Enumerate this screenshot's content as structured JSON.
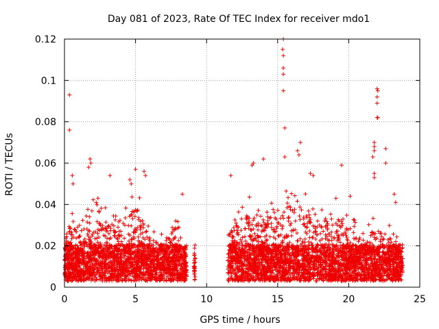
{
  "chart_data": {
    "type": "scatter",
    "title": "Day 081 of 2023, Rate Of TEC Index for receiver mdo1",
    "xlabel": "GPS time / hours",
    "ylabel": "ROTI / TECUs",
    "xlim": [
      0,
      25
    ],
    "ylim": [
      0,
      0.12
    ],
    "x_ticks": [
      "0",
      "5",
      "10",
      "15",
      "20",
      "25"
    ],
    "y_ticks": [
      "0",
      "0.02",
      "0.04",
      "0.06",
      "0.08",
      "0.1",
      "0.12"
    ],
    "grid": true,
    "marker": "plus",
    "color": "#ee0000",
    "density_profile": {
      "hours_with_data": [
        [
          0.0,
          8.6
        ],
        [
          9.1,
          9.2
        ],
        [
          11.5,
          23.8
        ]
      ],
      "baseline_range": [
        0.003,
        0.025
      ],
      "envelope": [
        {
          "x": 0.0,
          "y": 0.025
        },
        {
          "x": 0.5,
          "y": 0.04
        },
        {
          "x": 1.0,
          "y": 0.03
        },
        {
          "x": 2.0,
          "y": 0.045
        },
        {
          "x": 3.0,
          "y": 0.04
        },
        {
          "x": 4.0,
          "y": 0.035
        },
        {
          "x": 4.5,
          "y": 0.045
        },
        {
          "x": 5.0,
          "y": 0.05
        },
        {
          "x": 6.0,
          "y": 0.03
        },
        {
          "x": 7.0,
          "y": 0.025
        },
        {
          "x": 8.0,
          "y": 0.04
        },
        {
          "x": 8.5,
          "y": 0.02
        },
        {
          "x": 11.8,
          "y": 0.035
        },
        {
          "x": 13.0,
          "y": 0.045
        },
        {
          "x": 14.0,
          "y": 0.04
        },
        {
          "x": 15.0,
          "y": 0.045
        },
        {
          "x": 16.0,
          "y": 0.05
        },
        {
          "x": 17.0,
          "y": 0.045
        },
        {
          "x": 18.0,
          "y": 0.04
        },
        {
          "x": 19.0,
          "y": 0.045
        },
        {
          "x": 20.0,
          "y": 0.035
        },
        {
          "x": 21.0,
          "y": 0.03
        },
        {
          "x": 22.0,
          "y": 0.035
        },
        {
          "x": 23.0,
          "y": 0.03
        },
        {
          "x": 23.8,
          "y": 0.02
        }
      ]
    },
    "outliers": [
      {
        "x": 0.35,
        "y": 0.093
      },
      {
        "x": 0.35,
        "y": 0.076
      },
      {
        "x": 0.55,
        "y": 0.054
      },
      {
        "x": 0.6,
        "y": 0.05
      },
      {
        "x": 1.7,
        "y": 0.058
      },
      {
        "x": 1.8,
        "y": 0.062
      },
      {
        "x": 1.85,
        "y": 0.06
      },
      {
        "x": 3.2,
        "y": 0.054
      },
      {
        "x": 5.0,
        "y": 0.057
      },
      {
        "x": 4.6,
        "y": 0.052
      },
      {
        "x": 4.7,
        "y": 0.05
      },
      {
        "x": 5.6,
        "y": 0.056
      },
      {
        "x": 5.7,
        "y": 0.054
      },
      {
        "x": 8.3,
        "y": 0.045
      },
      {
        "x": 9.1,
        "y": 0.01
      },
      {
        "x": 11.7,
        "y": 0.054
      },
      {
        "x": 13.2,
        "y": 0.059
      },
      {
        "x": 13.3,
        "y": 0.06
      },
      {
        "x": 14.0,
        "y": 0.062
      },
      {
        "x": 15.4,
        "y": 0.12
      },
      {
        "x": 15.35,
        "y": 0.115
      },
      {
        "x": 15.4,
        "y": 0.112
      },
      {
        "x": 15.4,
        "y": 0.106
      },
      {
        "x": 15.4,
        "y": 0.103
      },
      {
        "x": 15.4,
        "y": 0.095
      },
      {
        "x": 15.5,
        "y": 0.077
      },
      {
        "x": 15.5,
        "y": 0.063
      },
      {
        "x": 16.4,
        "y": 0.066
      },
      {
        "x": 16.6,
        "y": 0.07
      },
      {
        "x": 16.5,
        "y": 0.064
      },
      {
        "x": 17.3,
        "y": 0.055
      },
      {
        "x": 17.5,
        "y": 0.054
      },
      {
        "x": 19.5,
        "y": 0.059
      },
      {
        "x": 20.1,
        "y": 0.044
      },
      {
        "x": 21.8,
        "y": 0.07
      },
      {
        "x": 21.8,
        "y": 0.068
      },
      {
        "x": 21.8,
        "y": 0.066
      },
      {
        "x": 21.7,
        "y": 0.063
      },
      {
        "x": 21.8,
        "y": 0.055
      },
      {
        "x": 21.8,
        "y": 0.053
      },
      {
        "x": 22.0,
        "y": 0.096
      },
      {
        "x": 22.05,
        "y": 0.095
      },
      {
        "x": 22.0,
        "y": 0.092
      },
      {
        "x": 22.0,
        "y": 0.089
      },
      {
        "x": 22.0,
        "y": 0.082
      },
      {
        "x": 22.05,
        "y": 0.082
      },
      {
        "x": 22.6,
        "y": 0.067
      },
      {
        "x": 22.6,
        "y": 0.06
      },
      {
        "x": 23.2,
        "y": 0.045
      },
      {
        "x": 23.3,
        "y": 0.041
      }
    ]
  }
}
